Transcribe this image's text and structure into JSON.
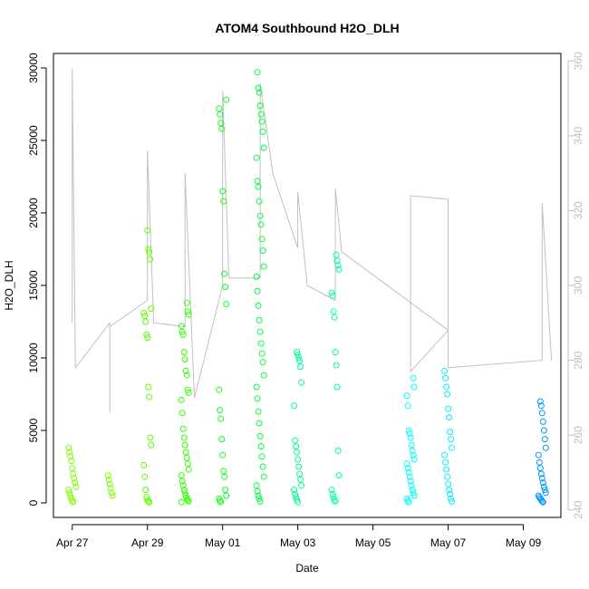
{
  "chart_data": {
    "type": "scatter",
    "title": "ATOM4 Southbound H2O_DLH",
    "xlabel": "Date",
    "ylabel": "H2O_DLH",
    "xlim": [
      "2014-04-26T12:00",
      "2014-05-10T00:00"
    ],
    "ylim": [
      -1000,
      31000
    ],
    "x_ticks": [
      {
        "date": "2014-04-27",
        "label": "Apr 27"
      },
      {
        "date": "2014-04-29",
        "label": "Apr 29"
      },
      {
        "date": "2014-05-01",
        "label": "May 01"
      },
      {
        "date": "2014-05-03",
        "label": "May 03"
      },
      {
        "date": "2014-05-05",
        "label": "May 05"
      },
      {
        "date": "2014-05-07",
        "label": "May 07"
      },
      {
        "date": "2014-05-09",
        "label": "May 09"
      }
    ],
    "y_ticks": [
      0,
      5000,
      10000,
      15000,
      20000,
      25000,
      30000
    ],
    "y2_ticks": [
      240,
      260,
      280,
      300,
      320,
      340,
      360
    ],
    "y2lim": [
      238,
      362
    ],
    "secondary_series_color": "#c0c0c0",
    "point_color_scale": [
      "#7fff00",
      "#00ff40",
      "#00ffbf",
      "#00ffff",
      "#0080ff"
    ],
    "clusters": [
      {
        "time": "2014-04-27T00:00",
        "color": "#80ff00",
        "values": [
          3800,
          3500,
          3200,
          2900,
          2400,
          2000,
          1700,
          1400,
          1100,
          900,
          700,
          500,
          300,
          150,
          50
        ]
      },
      {
        "time": "2014-04-28T00:00",
        "color": "#80ff00",
        "values": [
          1900,
          1600,
          1300,
          1000,
          700,
          500
        ]
      },
      {
        "time": "2014-04-29T00:00",
        "color": "#5fff00",
        "values": [
          18800,
          17500,
          17300,
          16800,
          13400,
          13100,
          12900,
          12500,
          11600,
          11400,
          8000,
          7300,
          4500,
          4000,
          2600,
          1800,
          900,
          400,
          200,
          100,
          50
        ]
      },
      {
        "time": "2014-04-30T00:00",
        "color": "#30ff00",
        "values": [
          13800,
          13200,
          13000,
          12200,
          11800,
          11600,
          10400,
          9900,
          9100,
          8800,
          7800,
          7600,
          7100,
          6200,
          5100,
          4500,
          4000,
          3500,
          3100,
          2700,
          2300,
          1900,
          1500,
          1200,
          900,
          700,
          500,
          300,
          200,
          100,
          50
        ]
      },
      {
        "time": "2014-05-01T00:00",
        "color": "#10ff20",
        "values": [
          27800,
          27200,
          26800,
          26200,
          25800,
          21500,
          20800,
          15800,
          14900,
          13700,
          7800,
          6400,
          5800,
          4400,
          3300,
          2200,
          1800,
          900,
          500,
          300,
          150,
          50
        ]
      },
      {
        "time": "2014-05-02T00:00",
        "color": "#00ff40",
        "values": [
          29700,
          28600,
          28300,
          27400,
          26800,
          26300,
          25600,
          24500,
          23800,
          22200,
          21800,
          20800,
          19800,
          19200,
          18200,
          17400,
          16300,
          15600,
          14600,
          13600,
          12600,
          11800,
          11000,
          10300,
          9700,
          8800,
          8000,
          7200,
          6300,
          5500,
          4600,
          3900,
          3200,
          2500,
          1800,
          1200,
          800,
          500,
          300,
          100
        ]
      },
      {
        "time": "2014-05-03T00:00",
        "color": "#00ff90",
        "values": [
          10400,
          10200,
          10000,
          9800,
          9400,
          8300,
          6700,
          4300,
          3900,
          3500,
          3000,
          2500,
          2000,
          1600,
          1200,
          900,
          600,
          400,
          200,
          50
        ]
      },
      {
        "time": "2014-05-04T00:00",
        "color": "#00ffb0",
        "values": [
          17100,
          16700,
          16400,
          16100,
          14500,
          14300,
          13200,
          12800,
          10400,
          9500,
          8000,
          3600,
          1900,
          900,
          600,
          400,
          200,
          100
        ]
      },
      {
        "time": "2014-05-06T00:00",
        "color": "#00ffff",
        "values": [
          8600,
          8000,
          7400,
          6700,
          5000,
          4800,
          4500,
          4000,
          3600,
          3300,
          3000,
          2700,
          2400,
          2100,
          1800,
          1500,
          1200,
          900,
          700,
          500,
          300,
          150,
          50
        ]
      },
      {
        "time": "2014-05-07T00:00",
        "color": "#00f0ff",
        "values": [
          9100,
          8600,
          8000,
          7500,
          6500,
          5900,
          4900,
          4400,
          3800,
          3300,
          2800,
          2300,
          1800,
          1300,
          900,
          600,
          300,
          100
        ]
      },
      {
        "time": "2014-05-09T12:00",
        "color": "#0095ff",
        "values": [
          7000,
          6700,
          6200,
          5600,
          5000,
          4400,
          3800,
          3300,
          2800,
          2400,
          2000,
          1700,
          1400,
          1100,
          900,
          700,
          500,
          400,
          300,
          200,
          100,
          50
        ]
      }
    ],
    "secondary_series": [
      {
        "x": "2014-04-27T00:00",
        "y": 290
      },
      {
        "x": "2014-04-27T00:00",
        "y": 358
      },
      {
        "x": "2014-04-27T02:00",
        "y": 278
      },
      {
        "x": "2014-04-28T00:00",
        "y": 290
      },
      {
        "x": "2014-04-28T00:00",
        "y": 266
      },
      {
        "x": "2014-04-28T00:00",
        "y": 289
      },
      {
        "x": "2014-04-29T00:00",
        "y": 296
      },
      {
        "x": "2014-04-29T00:00",
        "y": 336
      },
      {
        "x": "2014-04-29T04:00",
        "y": 290
      },
      {
        "x": "2014-04-30T00:00",
        "y": 289
      },
      {
        "x": "2014-04-30T00:00",
        "y": 330
      },
      {
        "x": "2014-04-30T06:00",
        "y": 270
      },
      {
        "x": "2014-05-01T00:00",
        "y": 300
      },
      {
        "x": "2014-05-01T00:00",
        "y": 352
      },
      {
        "x": "2014-05-01T04:00",
        "y": 302
      },
      {
        "x": "2014-05-02T00:00",
        "y": 302
      },
      {
        "x": "2014-05-02T00:00",
        "y": 354
      },
      {
        "x": "2014-05-02T08:00",
        "y": 330
      },
      {
        "x": "2014-05-03T00:00",
        "y": 310
      },
      {
        "x": "2014-05-03T00:00",
        "y": 325
      },
      {
        "x": "2014-05-03T06:00",
        "y": 300
      },
      {
        "x": "2014-05-04T00:00",
        "y": 296
      },
      {
        "x": "2014-05-04T00:00",
        "y": 326
      },
      {
        "x": "2014-05-04T04:00",
        "y": 309
      },
      {
        "x": "2014-05-07T00:00",
        "y": 288
      },
      {
        "x": "2014-05-06T00:00",
        "y": 277
      },
      {
        "x": "2014-05-06T00:00",
        "y": 324
      },
      {
        "x": "2014-05-07T00:00",
        "y": 323
      },
      {
        "x": "2014-05-07T00:00",
        "y": 278
      },
      {
        "x": "2014-05-09T12:00",
        "y": 280
      },
      {
        "x": "2014-05-09T12:00",
        "y": 322
      },
      {
        "x": "2014-05-09T18:00",
        "y": 280
      }
    ]
  }
}
